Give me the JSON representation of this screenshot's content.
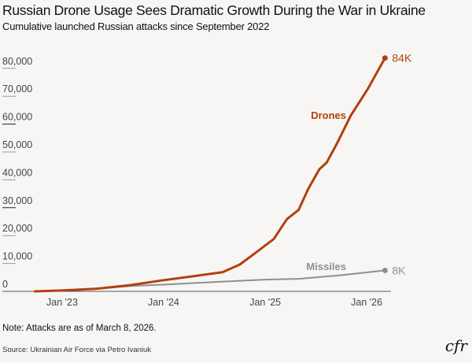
{
  "title": "Russian Drone Usage Sees Dramatic Growth During the War in Ukraine",
  "subtitle": "Cumulative launched Russian attacks since September 2022",
  "note": "Note: Attacks are as of March 8, 2026.",
  "source": "Source: Ukrainian Air Force via Petro Ivaniuk",
  "logo_text": "cfr",
  "chart_data": {
    "type": "line",
    "title": "Russian Drone Usage Sees Dramatic Growth During the War in Ukraine",
    "subtitle": "Cumulative launched Russian attacks since September 2022",
    "xlabel": "",
    "ylabel": "",
    "ylim": [
      0,
      85000
    ],
    "xlim": [
      "2022-09-25",
      "2026-03-08"
    ],
    "grid": false,
    "yticks": [
      0,
      10000,
      20000,
      30000,
      40000,
      50000,
      60000,
      70000,
      80000
    ],
    "ytick_labels": [
      "0",
      "10,000",
      "20,000",
      "30,000",
      "40,000",
      "50,000",
      "60,000",
      "70,000",
      "80,000"
    ],
    "xticks": [
      "2023-01-01",
      "2024-01-01",
      "2025-01-01",
      "2026-01-01"
    ],
    "xtick_labels": [
      "Jan '23",
      "Jan '24",
      "Jan '25",
      "Jan '26"
    ],
    "series": [
      {
        "name": "Drones",
        "color": "#b0400e",
        "end_label": "84K",
        "points": [
          [
            "2022-09-25",
            0
          ],
          [
            "2023-01-01",
            300
          ],
          [
            "2023-05-01",
            900
          ],
          [
            "2023-09-01",
            2200
          ],
          [
            "2024-01-01",
            4000
          ],
          [
            "2024-04-15",
            5400
          ],
          [
            "2024-08-01",
            6900
          ],
          [
            "2024-10-01",
            9600
          ],
          [
            "2024-12-01",
            14100
          ],
          [
            "2025-02-01",
            18800
          ],
          [
            "2025-03-20",
            25900
          ],
          [
            "2025-05-01",
            29200
          ],
          [
            "2025-06-05",
            36800
          ],
          [
            "2025-07-15",
            43800
          ],
          [
            "2025-08-10",
            46200
          ],
          [
            "2025-09-15",
            52800
          ],
          [
            "2025-11-05",
            63100
          ],
          [
            "2026-01-05",
            72600
          ],
          [
            "2026-03-08",
            83700
          ]
        ]
      },
      {
        "name": "Missiles",
        "color": "#8f8f8f",
        "end_label": "8K",
        "points": [
          [
            "2022-09-25",
            0
          ],
          [
            "2023-01-01",
            300
          ],
          [
            "2023-05-01",
            900
          ],
          [
            "2023-09-01",
            1900
          ],
          [
            "2024-01-01",
            2400
          ],
          [
            "2024-08-01",
            3500
          ],
          [
            "2025-01-01",
            4200
          ],
          [
            "2025-05-01",
            4500
          ],
          [
            "2025-10-01",
            5800
          ],
          [
            "2026-03-08",
            7500
          ]
        ]
      }
    ]
  }
}
